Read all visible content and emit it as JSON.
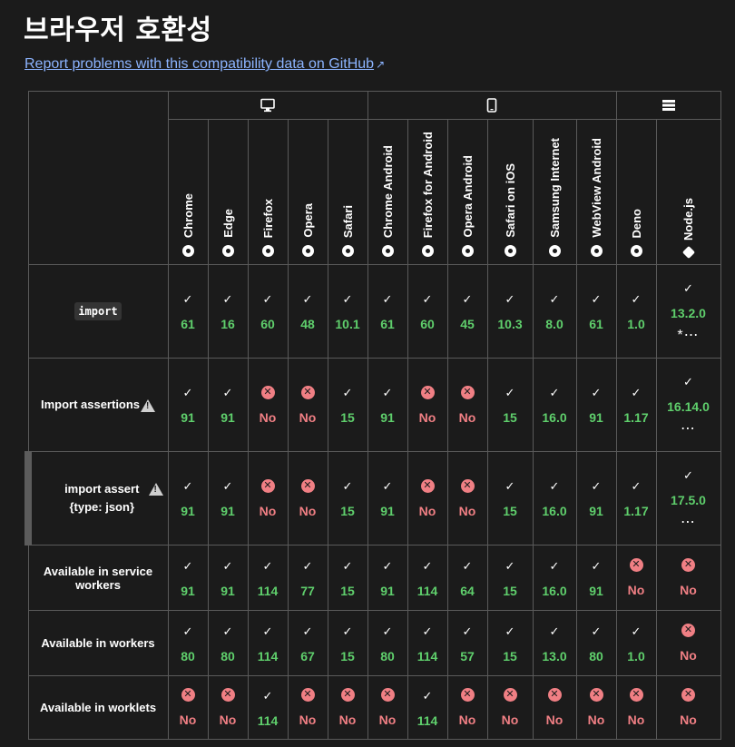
{
  "page": {
    "title": "브라우저 호환성",
    "report_link": "Report problems with this compatibility data on GitHub"
  },
  "icons": {
    "desktop": "desktop-icon",
    "mobile": "mobile-icon",
    "server": "server-icon",
    "warning": "warning-icon",
    "check": "check-icon",
    "cross": "cross-icon"
  },
  "colors": {
    "supported": "#5fcf6c",
    "unsupported": "#f07f84",
    "link": "#8cb4ff",
    "background": "#1b1b1b"
  },
  "platforms": [
    {
      "name": "desktop",
      "icon": "desktop-icon"
    },
    {
      "name": "mobile",
      "icon": "mobile-icon"
    },
    {
      "name": "server",
      "icon": "server-icon"
    }
  ],
  "browsers": [
    {
      "name": "Chrome",
      "icon": "chrome-icon"
    },
    {
      "name": "Edge",
      "icon": "edge-icon"
    },
    {
      "name": "Firefox",
      "icon": "firefox-icon"
    },
    {
      "name": "Opera",
      "icon": "opera-icon"
    },
    {
      "name": "Safari",
      "icon": "safari-icon"
    },
    {
      "name": "Chrome Android",
      "icon": "chrome-icon"
    },
    {
      "name": "Firefox for Android",
      "icon": "firefox-icon"
    },
    {
      "name": "Opera Android",
      "icon": "opera-icon"
    },
    {
      "name": "Safari on iOS",
      "icon": "safari-icon"
    },
    {
      "name": "Samsung Internet",
      "icon": "samsung-internet-icon"
    },
    {
      "name": "WebView Android",
      "icon": "android-icon"
    },
    {
      "name": "Deno",
      "icon": "deno-icon"
    },
    {
      "name": "Node.js",
      "icon": "nodejs-icon"
    }
  ],
  "features": [
    {
      "name": "import",
      "code": true,
      "cells": [
        {
          "s": true,
          "v": "61"
        },
        {
          "s": true,
          "v": "16"
        },
        {
          "s": true,
          "v": "60"
        },
        {
          "s": true,
          "v": "48"
        },
        {
          "s": true,
          "v": "10.1"
        },
        {
          "s": true,
          "v": "61"
        },
        {
          "s": true,
          "v": "60"
        },
        {
          "s": true,
          "v": "45"
        },
        {
          "s": true,
          "v": "10.3"
        },
        {
          "s": true,
          "v": "8.0"
        },
        {
          "s": true,
          "v": "61"
        },
        {
          "s": true,
          "v": "1.0"
        },
        {
          "s": true,
          "v": "13.2.0",
          "extra": "*⋯"
        }
      ]
    },
    {
      "name": "Import assertions",
      "warning": true,
      "cells": [
        {
          "s": true,
          "v": "91"
        },
        {
          "s": true,
          "v": "91"
        },
        {
          "s": false,
          "v": "No"
        },
        {
          "s": false,
          "v": "No"
        },
        {
          "s": true,
          "v": "15"
        },
        {
          "s": true,
          "v": "91"
        },
        {
          "s": false,
          "v": "No"
        },
        {
          "s": false,
          "v": "No"
        },
        {
          "s": true,
          "v": "15"
        },
        {
          "s": true,
          "v": "16.0"
        },
        {
          "s": true,
          "v": "91"
        },
        {
          "s": true,
          "v": "1.17"
        },
        {
          "s": true,
          "v": "16.14.0",
          "extra": "⋯"
        }
      ]
    },
    {
      "name": "import assert {type: json}",
      "sub": true,
      "warning": true,
      "cells": [
        {
          "s": true,
          "v": "91"
        },
        {
          "s": true,
          "v": "91"
        },
        {
          "s": false,
          "v": "No"
        },
        {
          "s": false,
          "v": "No"
        },
        {
          "s": true,
          "v": "15"
        },
        {
          "s": true,
          "v": "91"
        },
        {
          "s": false,
          "v": "No"
        },
        {
          "s": false,
          "v": "No"
        },
        {
          "s": true,
          "v": "15"
        },
        {
          "s": true,
          "v": "16.0"
        },
        {
          "s": true,
          "v": "91"
        },
        {
          "s": true,
          "v": "1.17"
        },
        {
          "s": true,
          "v": "17.5.0",
          "extra": "⋯"
        }
      ]
    },
    {
      "name": "Available in service workers",
      "cells": [
        {
          "s": true,
          "v": "91"
        },
        {
          "s": true,
          "v": "91"
        },
        {
          "s": true,
          "v": "114"
        },
        {
          "s": true,
          "v": "77"
        },
        {
          "s": true,
          "v": "15"
        },
        {
          "s": true,
          "v": "91"
        },
        {
          "s": true,
          "v": "114"
        },
        {
          "s": true,
          "v": "64"
        },
        {
          "s": true,
          "v": "15"
        },
        {
          "s": true,
          "v": "16.0"
        },
        {
          "s": true,
          "v": "91"
        },
        {
          "s": false,
          "v": "No"
        },
        {
          "s": false,
          "v": "No"
        }
      ]
    },
    {
      "name": "Available in workers",
      "cells": [
        {
          "s": true,
          "v": "80"
        },
        {
          "s": true,
          "v": "80"
        },
        {
          "s": true,
          "v": "114"
        },
        {
          "s": true,
          "v": "67"
        },
        {
          "s": true,
          "v": "15"
        },
        {
          "s": true,
          "v": "80"
        },
        {
          "s": true,
          "v": "114"
        },
        {
          "s": true,
          "v": "57"
        },
        {
          "s": true,
          "v": "15"
        },
        {
          "s": true,
          "v": "13.0"
        },
        {
          "s": true,
          "v": "80"
        },
        {
          "s": true,
          "v": "1.0"
        },
        {
          "s": false,
          "v": "No"
        }
      ]
    },
    {
      "name": "Available in worklets",
      "cells": [
        {
          "s": false,
          "v": "No"
        },
        {
          "s": false,
          "v": "No"
        },
        {
          "s": true,
          "v": "114"
        },
        {
          "s": false,
          "v": "No"
        },
        {
          "s": false,
          "v": "No"
        },
        {
          "s": false,
          "v": "No"
        },
        {
          "s": true,
          "v": "114"
        },
        {
          "s": false,
          "v": "No"
        },
        {
          "s": false,
          "v": "No"
        },
        {
          "s": false,
          "v": "No"
        },
        {
          "s": false,
          "v": "No"
        },
        {
          "s": false,
          "v": "No"
        },
        {
          "s": false,
          "v": "No"
        }
      ]
    }
  ]
}
